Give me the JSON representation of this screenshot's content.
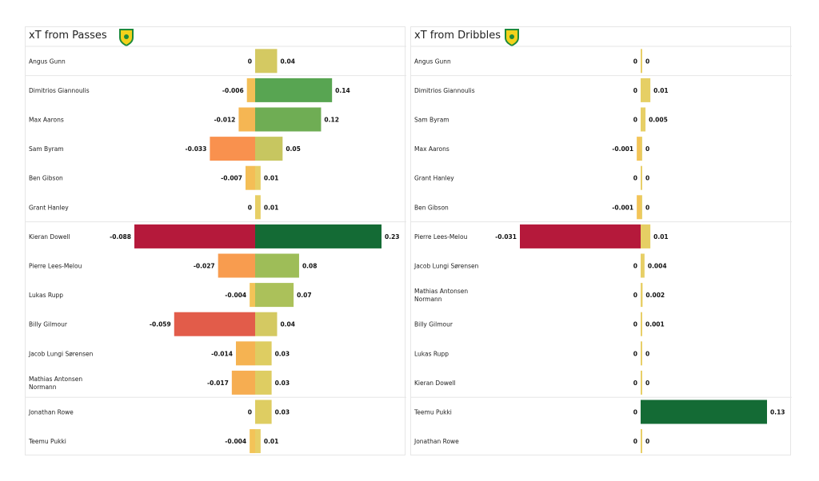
{
  "chart_data": [
    {
      "type": "bar",
      "orientation": "horizontal-diverging",
      "title": "xT from Passes",
      "categories": [
        "Angus Gunn",
        "Dimitrios Giannoulis",
        "Max Aarons",
        "Sam Byram",
        "Ben Gibson",
        "Grant Hanley",
        "Kieran Dowell",
        "Pierre Lees-Melou",
        "Lukas Rupp",
        "Billy Gilmour",
        "Jacob  Lungi Sørensen",
        "Mathias  Antonsen Normann",
        "Jonathan Rowe",
        "Teemu Pukki"
      ],
      "negative": [
        0,
        -0.006,
        -0.012,
        -0.033,
        -0.007,
        0,
        -0.088,
        -0.027,
        -0.004,
        -0.059,
        -0.014,
        -0.017,
        0,
        -0.004
      ],
      "positive": [
        0.04,
        0.14,
        0.12,
        0.05,
        0.01,
        0.01,
        0.23,
        0.08,
        0.07,
        0.04,
        0.03,
        0.03,
        0.03,
        0.01
      ],
      "group_breaks_after": [
        1,
        6,
        12
      ]
    },
    {
      "type": "bar",
      "orientation": "horizontal-diverging",
      "title": "xT from Dribbles",
      "categories": [
        "Angus Gunn",
        "Dimitrios Giannoulis",
        "Sam Byram",
        "Max Aarons",
        "Grant Hanley",
        "Ben Gibson",
        "Pierre Lees-Melou",
        "Jacob  Lungi Sørensen",
        "Mathias  Antonsen Normann",
        "Billy Gilmour",
        "Lukas Rupp",
        "Kieran Dowell",
        "Teemu Pukki",
        "Jonathan Rowe"
      ],
      "negative": [
        0,
        0,
        0,
        -0.001,
        0,
        -0.001,
        -0.031,
        0,
        0,
        0,
        0,
        0,
        0,
        0
      ],
      "positive": [
        0,
        0.01,
        0.005,
        0,
        0,
        0,
        0.01,
        0.004,
        0.002,
        0.001,
        0,
        0,
        0.13,
        0
      ],
      "group_breaks_after": [
        1,
        6,
        12
      ]
    }
  ],
  "colors": {
    "neg_max": "#b5193b",
    "pos_max": "#146b35",
    "neutral": "#e8cf68"
  }
}
